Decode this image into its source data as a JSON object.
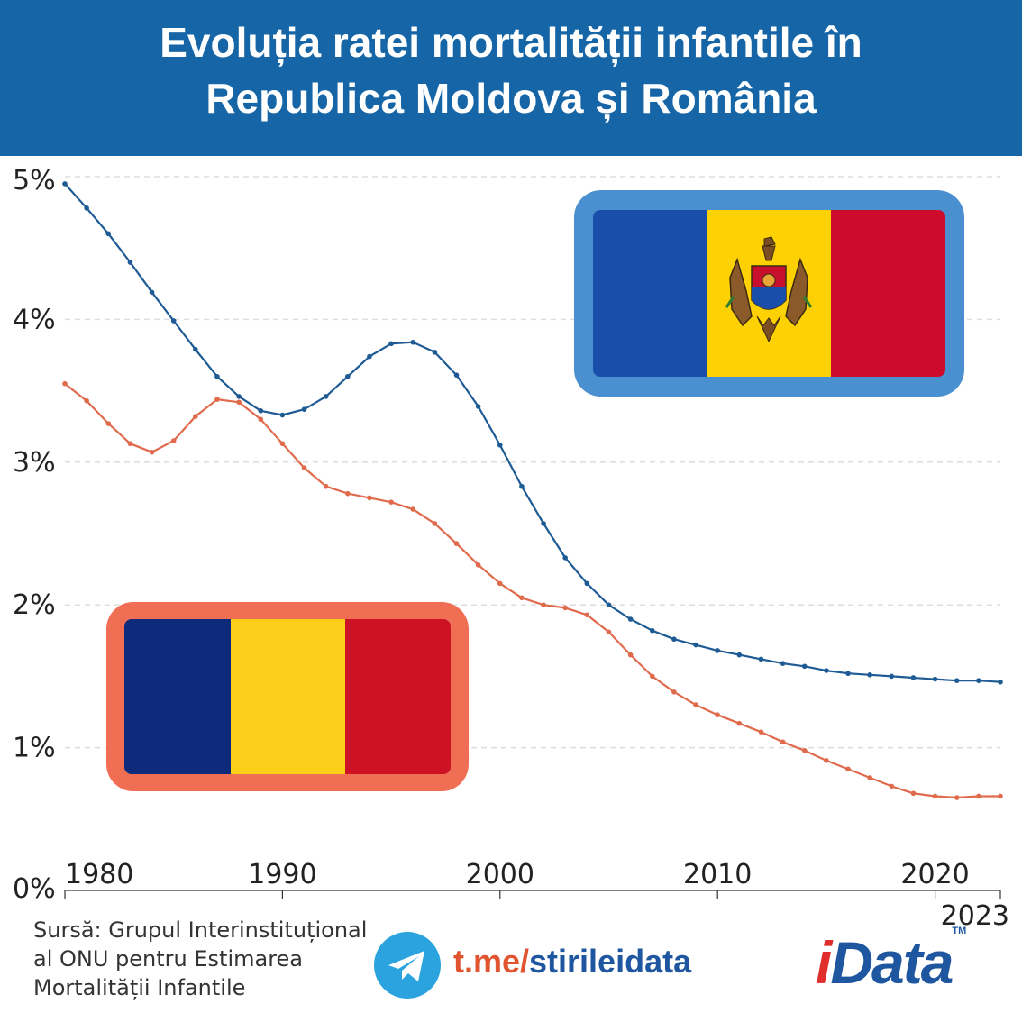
{
  "title_line1": "Evoluția ratei mortalității infantile în",
  "title_line2": "Republica Moldova și România",
  "chart_data": {
    "type": "line",
    "title": "Evoluția ratei mortalității infantile în Republica Moldova și România",
    "xlabel": "",
    "ylabel": "",
    "xlim": [
      1980,
      2023
    ],
    "ylim": [
      0,
      5
    ],
    "x_ticks": [
      1980,
      1990,
      2000,
      2010,
      2020,
      2023
    ],
    "y_ticks": [
      0,
      1,
      2,
      3,
      4,
      5
    ],
    "y_tick_labels": [
      "0%",
      "1%",
      "2%",
      "3%",
      "4%",
      "5%"
    ],
    "grid": true,
    "x": [
      1980,
      1981,
      1982,
      1983,
      1984,
      1985,
      1986,
      1987,
      1988,
      1989,
      1990,
      1991,
      1992,
      1993,
      1994,
      1995,
      1996,
      1997,
      1998,
      1999,
      2000,
      2001,
      2002,
      2003,
      2004,
      2005,
      2006,
      2007,
      2008,
      2009,
      2010,
      2011,
      2012,
      2013,
      2014,
      2015,
      2016,
      2017,
      2018,
      2019,
      2020,
      2021,
      2022,
      2023
    ],
    "series": [
      {
        "name": "Republica Moldova",
        "color": "#1e5b94",
        "values": [
          4.95,
          4.78,
          4.6,
          4.4,
          4.19,
          3.99,
          3.79,
          3.6,
          3.46,
          3.36,
          3.33,
          3.37,
          3.46,
          3.6,
          3.74,
          3.83,
          3.84,
          3.77,
          3.61,
          3.39,
          3.12,
          2.83,
          2.57,
          2.33,
          2.15,
          2.0,
          1.9,
          1.82,
          1.76,
          1.72,
          1.68,
          1.65,
          1.62,
          1.59,
          1.57,
          1.54,
          1.52,
          1.51,
          1.5,
          1.49,
          1.48,
          1.47,
          1.47,
          1.46
        ]
      },
      {
        "name": "România",
        "color": "#e06a4c",
        "values": [
          3.55,
          3.43,
          3.27,
          3.13,
          3.07,
          3.15,
          3.32,
          3.44,
          3.42,
          3.3,
          3.13,
          2.96,
          2.83,
          2.78,
          2.75,
          2.72,
          2.67,
          2.57,
          2.43,
          2.28,
          2.15,
          2.05,
          2.0,
          1.98,
          1.93,
          1.81,
          1.65,
          1.5,
          1.39,
          1.3,
          1.23,
          1.17,
          1.11,
          1.04,
          0.98,
          0.91,
          0.85,
          0.79,
          0.73,
          0.68,
          0.66,
          0.65,
          0.66,
          0.66
        ]
      }
    ]
  },
  "flags": {
    "moldova": {
      "colors": [
        "#1a4eab",
        "#fed104",
        "#cc0b2d"
      ],
      "frame": "#4a90d0"
    },
    "romania": {
      "colors": [
        "#0e2a7a",
        "#fccf1a",
        "#cd1226"
      ],
      "frame": "#ef6e54"
    }
  },
  "footer": {
    "source_line1": "Sursă: Grupul Interinstituțional",
    "source_line2": "al ONU pentru Estimarea",
    "source_line3": "Mortalității Infantile",
    "telegram_prefix": "t.me/",
    "telegram_handle": "stirileidata",
    "logo_i": "i",
    "logo_rest": "Data",
    "logo_tm": "TM"
  }
}
